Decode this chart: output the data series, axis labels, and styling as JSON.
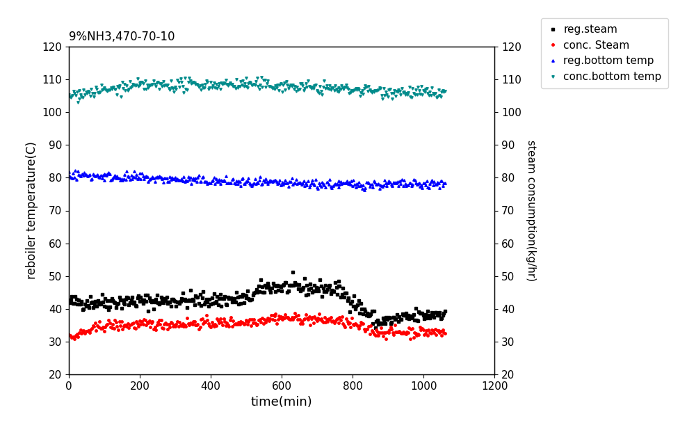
{
  "title": "9%NH3,470-70-10",
  "xlabel": "time(min)",
  "ylabel_left": "reboiler temperature(C)",
  "ylabel_right": "steam consumption(kg/hr)",
  "xlim": [
    0,
    1200
  ],
  "ylim_left": [
    20,
    120
  ],
  "ylim_right": [
    20,
    120
  ],
  "xticks": [
    0,
    200,
    400,
    600,
    800,
    1000,
    1200
  ],
  "yticks": [
    20,
    30,
    40,
    50,
    60,
    70,
    80,
    90,
    100,
    110,
    120
  ],
  "series": {
    "reg_steam": {
      "color": "#000000",
      "marker": "s",
      "markersize": 2.5,
      "label": "reg.steam",
      "segments": [
        {
          "x_start": 0,
          "x_end": 500,
          "y_start": 42.0,
          "y_end": 43.0
        },
        {
          "x_start": 500,
          "x_end": 560,
          "y_start": 43.0,
          "y_end": 47.0
        },
        {
          "x_start": 560,
          "x_end": 760,
          "y_start": 47.0,
          "y_end": 46.0
        },
        {
          "x_start": 760,
          "x_end": 870,
          "y_start": 46.0,
          "y_end": 36.0
        },
        {
          "x_start": 870,
          "x_end": 1060,
          "y_start": 36.0,
          "y_end": 39.0
        }
      ],
      "noise": 1.2
    },
    "conc_steam": {
      "color": "#ff0000",
      "marker": "o",
      "markersize": 2.5,
      "label": "conc. Steam",
      "segments": [
        {
          "x_start": 0,
          "x_end": 20,
          "y_start": 31.0,
          "y_end": 32.0
        },
        {
          "x_start": 20,
          "x_end": 100,
          "y_start": 32.0,
          "y_end": 35.0
        },
        {
          "x_start": 100,
          "x_end": 500,
          "y_start": 35.0,
          "y_end": 36.0
        },
        {
          "x_start": 500,
          "x_end": 580,
          "y_start": 36.0,
          "y_end": 37.5
        },
        {
          "x_start": 580,
          "x_end": 760,
          "y_start": 37.5,
          "y_end": 36.5
        },
        {
          "x_start": 760,
          "x_end": 870,
          "y_start": 36.5,
          "y_end": 33.0
        },
        {
          "x_start": 870,
          "x_end": 1060,
          "y_start": 33.0,
          "y_end": 33.0
        }
      ],
      "noise": 0.8
    },
    "reg_bottom": {
      "color": "#0000ff",
      "marker": "^",
      "markersize": 2.5,
      "label": "reg.bottom temp",
      "segments": [
        {
          "x_start": 0,
          "x_end": 100,
          "y_start": 81.0,
          "y_end": 80.5
        },
        {
          "x_start": 100,
          "x_end": 500,
          "y_start": 80.5,
          "y_end": 78.5
        },
        {
          "x_start": 500,
          "x_end": 760,
          "y_start": 78.5,
          "y_end": 78.0
        },
        {
          "x_start": 760,
          "x_end": 1060,
          "y_start": 78.0,
          "y_end": 78.0
        }
      ],
      "noise": 0.7
    },
    "conc_bottom": {
      "color": "#008B8B",
      "marker": "v",
      "markersize": 2.5,
      "label": "conc.bottom temp",
      "segments": [
        {
          "x_start": 0,
          "x_end": 30,
          "y_start": 105.0,
          "y_end": 105.5
        },
        {
          "x_start": 30,
          "x_end": 200,
          "y_start": 105.5,
          "y_end": 108.0
        },
        {
          "x_start": 200,
          "x_end": 500,
          "y_start": 108.0,
          "y_end": 108.5
        },
        {
          "x_start": 500,
          "x_end": 760,
          "y_start": 108.5,
          "y_end": 107.0
        },
        {
          "x_start": 760,
          "x_end": 1060,
          "y_start": 107.0,
          "y_end": 105.5
        }
      ],
      "noise": 0.9
    }
  }
}
